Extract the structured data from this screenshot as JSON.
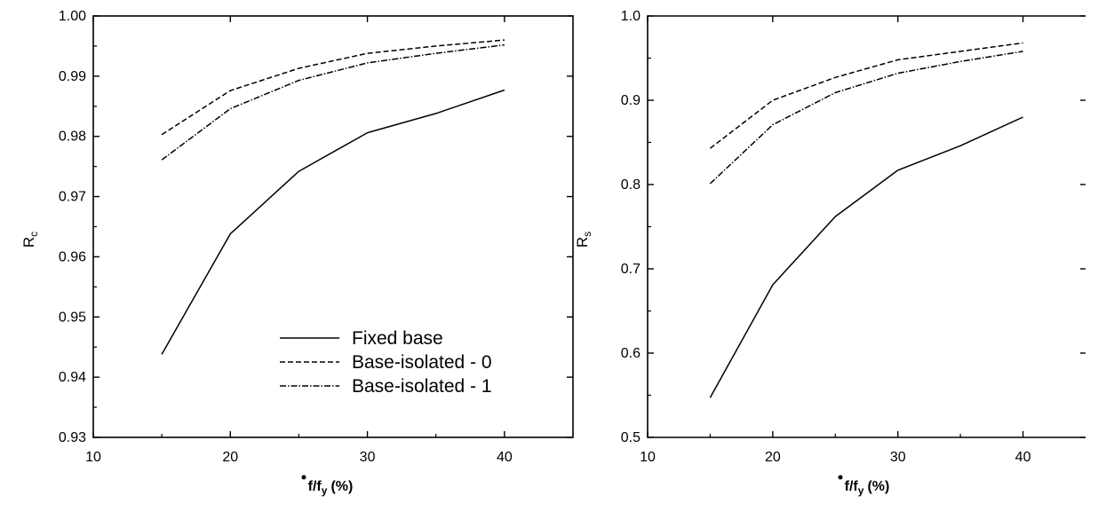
{
  "chart_data": [
    {
      "type": "line",
      "xlabel": "f/f",
      "xlabel_sub": "y",
      "xlabel_unit": "(%)",
      "ylabel": "R",
      "ylabel_sub": "c",
      "xlim": [
        10,
        45
      ],
      "ylim": [
        0.93,
        1.0
      ],
      "xticks": [
        10,
        20,
        30,
        40
      ],
      "yticks": [
        "0.93",
        "0.94",
        "0.95",
        "0.96",
        "0.97",
        "0.98",
        "0.99",
        "1.00"
      ],
      "ytick_values": [
        0.93,
        0.94,
        0.95,
        0.96,
        0.97,
        0.98,
        0.99,
        1.0
      ],
      "grid": false,
      "legend_position": "bottom-right",
      "x": [
        15,
        20,
        25,
        30,
        35,
        40
      ],
      "series": [
        {
          "name": "Fixed base",
          "style": "solid",
          "values": [
            0.9438,
            0.9638,
            0.9742,
            0.9806,
            0.9838,
            0.9877
          ]
        },
        {
          "name": "Base-isolated - 0",
          "style": "dashed",
          "values": [
            0.9803,
            0.9876,
            0.9913,
            0.9938,
            0.995,
            0.996
          ]
        },
        {
          "name": "Base-isolated - 1",
          "style": "dashdot",
          "values": [
            0.9761,
            0.9846,
            0.9893,
            0.9922,
            0.9938,
            0.9952
          ]
        }
      ]
    },
    {
      "type": "line",
      "xlabel": "f/f",
      "xlabel_sub": "y",
      "xlabel_unit": "(%)",
      "ylabel": "R",
      "ylabel_sub": "s",
      "xlim": [
        10,
        45
      ],
      "ylim": [
        0.5,
        1.0
      ],
      "xticks": [
        10,
        20,
        30,
        40
      ],
      "yticks": [
        "0.5",
        "0.6",
        "0.7",
        "0.8",
        "0.9",
        "1.0"
      ],
      "ytick_values": [
        0.5,
        0.6,
        0.7,
        0.8,
        0.9,
        1.0
      ],
      "grid": false,
      "x": [
        15,
        20,
        25,
        30,
        35,
        40
      ],
      "series": [
        {
          "style": "solid",
          "values": [
            0.547,
            0.681,
            0.762,
            0.817,
            0.846,
            0.88
          ]
        },
        {
          "style": "dashed",
          "values": [
            0.843,
            0.9,
            0.927,
            0.948,
            0.958,
            0.968
          ]
        },
        {
          "style": "dashdot",
          "values": [
            0.801,
            0.871,
            0.909,
            0.932,
            0.946,
            0.958
          ]
        }
      ]
    }
  ]
}
